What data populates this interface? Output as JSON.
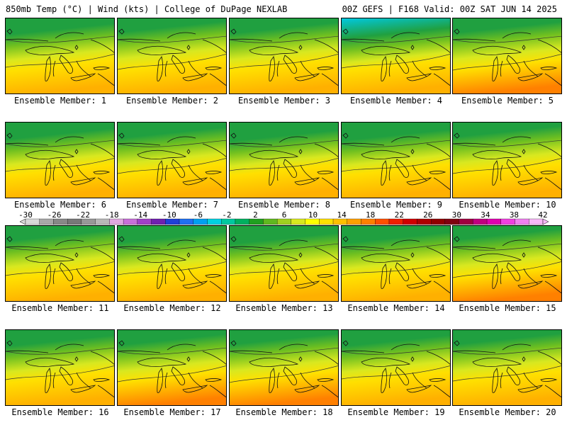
{
  "header": {
    "left": "850mb Temp (°C) | Wind (kts) | College of DuPage NEXLAB",
    "right": "00Z GEFS | F168 Valid: 00Z SAT JUN 14 2025"
  },
  "members": [
    {
      "label": "Ensemble Member: 1",
      "warm": 0.45,
      "cool": 0.4
    },
    {
      "label": "Ensemble Member: 2",
      "warm": 0.6,
      "cool": 0.2
    },
    {
      "label": "Ensemble Member: 3",
      "warm": 0.55,
      "cool": 0.3
    },
    {
      "label": "Ensemble Member: 4",
      "warm": 0.5,
      "cool": 0.75
    },
    {
      "label": "Ensemble Member: 5",
      "warm": 0.65,
      "cool": 0.25
    },
    {
      "label": "Ensemble Member: 6",
      "warm": 0.45,
      "cool": 0.45
    },
    {
      "label": "Ensemble Member: 7",
      "warm": 0.6,
      "cool": 0.35
    },
    {
      "label": "Ensemble Member: 8",
      "warm": 0.4,
      "cool": 0.6
    },
    {
      "label": "Ensemble Member: 9",
      "warm": 0.45,
      "cool": 0.55
    },
    {
      "label": "Ensemble Member: 10",
      "warm": 0.6,
      "cool": 0.25
    },
    {
      "label": "Ensemble Member: 11",
      "warm": 0.5,
      "cool": 0.3
    },
    {
      "label": "Ensemble Member: 12",
      "warm": 0.45,
      "cool": 0.45
    },
    {
      "label": "Ensemble Member: 13",
      "warm": 0.45,
      "cool": 0.55
    },
    {
      "label": "Ensemble Member: 14",
      "warm": 0.45,
      "cool": 0.5
    },
    {
      "label": "Ensemble Member: 15",
      "warm": 0.65,
      "cool": 0.2
    },
    {
      "label": "Ensemble Member: 16",
      "warm": 0.5,
      "cool": 0.4
    },
    {
      "label": "Ensemble Member: 17",
      "warm": 0.65,
      "cool": 0.3
    },
    {
      "label": "Ensemble Member: 18",
      "warm": 0.7,
      "cool": 0.25
    },
    {
      "label": "Ensemble Member: 19",
      "warm": 0.45,
      "cool": 0.4
    },
    {
      "label": "Ensemble Member: 20",
      "warm": 0.6,
      "cool": 0.25
    }
  ],
  "colorbar": {
    "labels": [
      "-30",
      "-26",
      "-22",
      "-18",
      "-14",
      "-10",
      "-6",
      "-2",
      "2",
      "6",
      "10",
      "14",
      "18",
      "22",
      "26",
      "30",
      "34",
      "38",
      "42"
    ],
    "colors": [
      "#d8d8d8",
      "#a8a8a8",
      "#888888",
      "#787878",
      "#989898",
      "#b8b8b8",
      "#e0a8e0",
      "#c870d8",
      "#a040c8",
      "#7020b0",
      "#2040d8",
      "#2070f0",
      "#00a0f0",
      "#00d0e0",
      "#00c8a0",
      "#00b060",
      "#20a020",
      "#60b820",
      "#a0d020",
      "#d8e820",
      "#ffff00",
      "#ffe000",
      "#ffc000",
      "#ffa000",
      "#ff8000",
      "#ff5000",
      "#f02000",
      "#d00000",
      "#b00000",
      "#900000",
      "#800010",
      "#a00040",
      "#c00080",
      "#e000b0",
      "#f040e0",
      "#f080f0",
      "#f8b8f8"
    ]
  }
}
